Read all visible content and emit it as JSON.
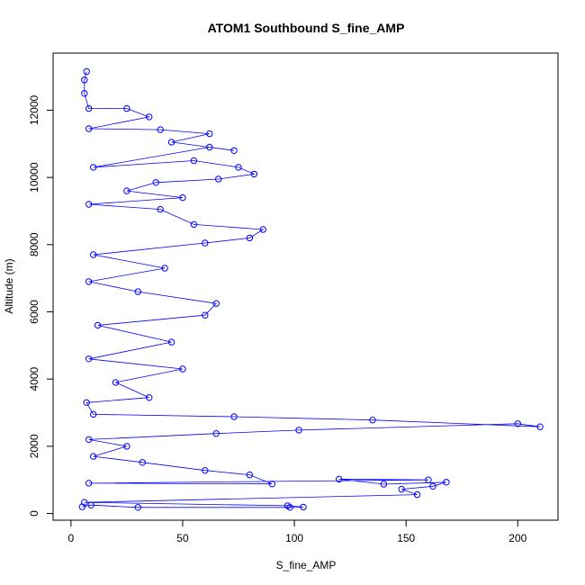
{
  "chart_data": {
    "type": "line",
    "title": "ATOM1 Southbound S_fine_AMP",
    "xlabel": "S_fine_AMP",
    "ylabel": "Altitude (m)",
    "xlim": [
      -8,
      218
    ],
    "ylim": [
      -200,
      13700
    ],
    "x_ticks": [
      0,
      50,
      100,
      150,
      200
    ],
    "y_ticks": [
      0,
      2000,
      4000,
      6000,
      8000,
      10000,
      12000
    ],
    "x_tick_labels": [
      "0",
      "50",
      "100",
      "150",
      "200"
    ],
    "y_tick_labels": [
      "0",
      "2000",
      "4000",
      "6000",
      "8000",
      "10000",
      "12000"
    ],
    "grid": false,
    "legend": "none",
    "marker": "open-circle",
    "line_style": "solid",
    "series": [
      {
        "color": "#0000ff",
        "points": [
          [
            5,
            200
          ],
          [
            9,
            250
          ],
          [
            30,
            180
          ],
          [
            98,
            180
          ],
          [
            104,
            190
          ],
          [
            97,
            230
          ],
          [
            6,
            330
          ],
          [
            155,
            560
          ],
          [
            148,
            720
          ],
          [
            162,
            810
          ],
          [
            168,
            930
          ],
          [
            140,
            870
          ],
          [
            120,
            1020
          ],
          [
            160,
            1000
          ],
          [
            8,
            900
          ],
          [
            90,
            880
          ],
          [
            80,
            1150
          ],
          [
            60,
            1280
          ],
          [
            32,
            1520
          ],
          [
            10,
            1700
          ],
          [
            25,
            2000
          ],
          [
            8,
            2200
          ],
          [
            65,
            2380
          ],
          [
            102,
            2480
          ],
          [
            200,
            2670
          ],
          [
            210,
            2580
          ],
          [
            135,
            2780
          ],
          [
            73,
            2880
          ],
          [
            10,
            2950
          ],
          [
            7,
            3300
          ],
          [
            35,
            3450
          ],
          [
            20,
            3900
          ],
          [
            50,
            4300
          ],
          [
            8,
            4600
          ],
          [
            45,
            5100
          ],
          [
            12,
            5600
          ],
          [
            60,
            5900
          ],
          [
            65,
            6250
          ],
          [
            30,
            6600
          ],
          [
            8,
            6900
          ],
          [
            42,
            7300
          ],
          [
            10,
            7700
          ],
          [
            60,
            8050
          ],
          [
            80,
            8200
          ],
          [
            86,
            8450
          ],
          [
            55,
            8600
          ],
          [
            40,
            9050
          ],
          [
            8,
            9200
          ],
          [
            50,
            9400
          ],
          [
            25,
            9600
          ],
          [
            38,
            9850
          ],
          [
            66,
            9950
          ],
          [
            82,
            10100
          ],
          [
            75,
            10300
          ],
          [
            55,
            10500
          ],
          [
            10,
            10300
          ],
          [
            62,
            10900
          ],
          [
            73,
            10800
          ],
          [
            45,
            11050
          ],
          [
            62,
            11300
          ],
          [
            40,
            11420
          ],
          [
            8,
            11450
          ],
          [
            35,
            11800
          ],
          [
            25,
            12050
          ],
          [
            8,
            12050
          ],
          [
            6,
            12500
          ],
          [
            6,
            12900
          ],
          [
            7,
            13150
          ]
        ]
      }
    ]
  }
}
